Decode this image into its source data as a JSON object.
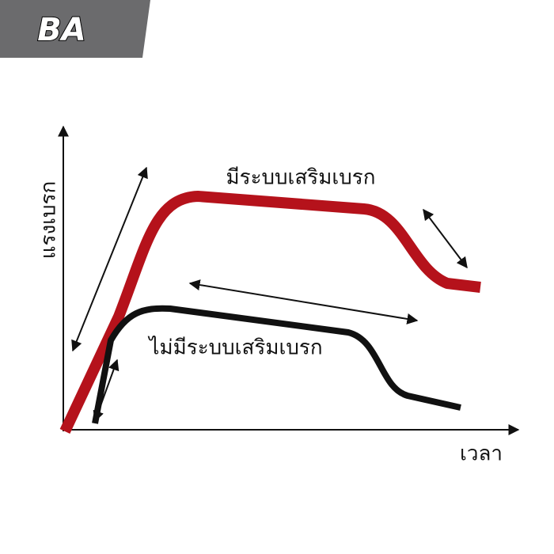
{
  "logo": {
    "text": "BA"
  },
  "curves": {
    "with_assist": {
      "label": "มีระบบเสริมเบรก"
    },
    "without_assist": {
      "label": "ไม่มีระบบเสริมเบรก"
    }
  },
  "axes": {
    "y_label": "แรงเบรก",
    "x_label": "เวลา"
  }
}
